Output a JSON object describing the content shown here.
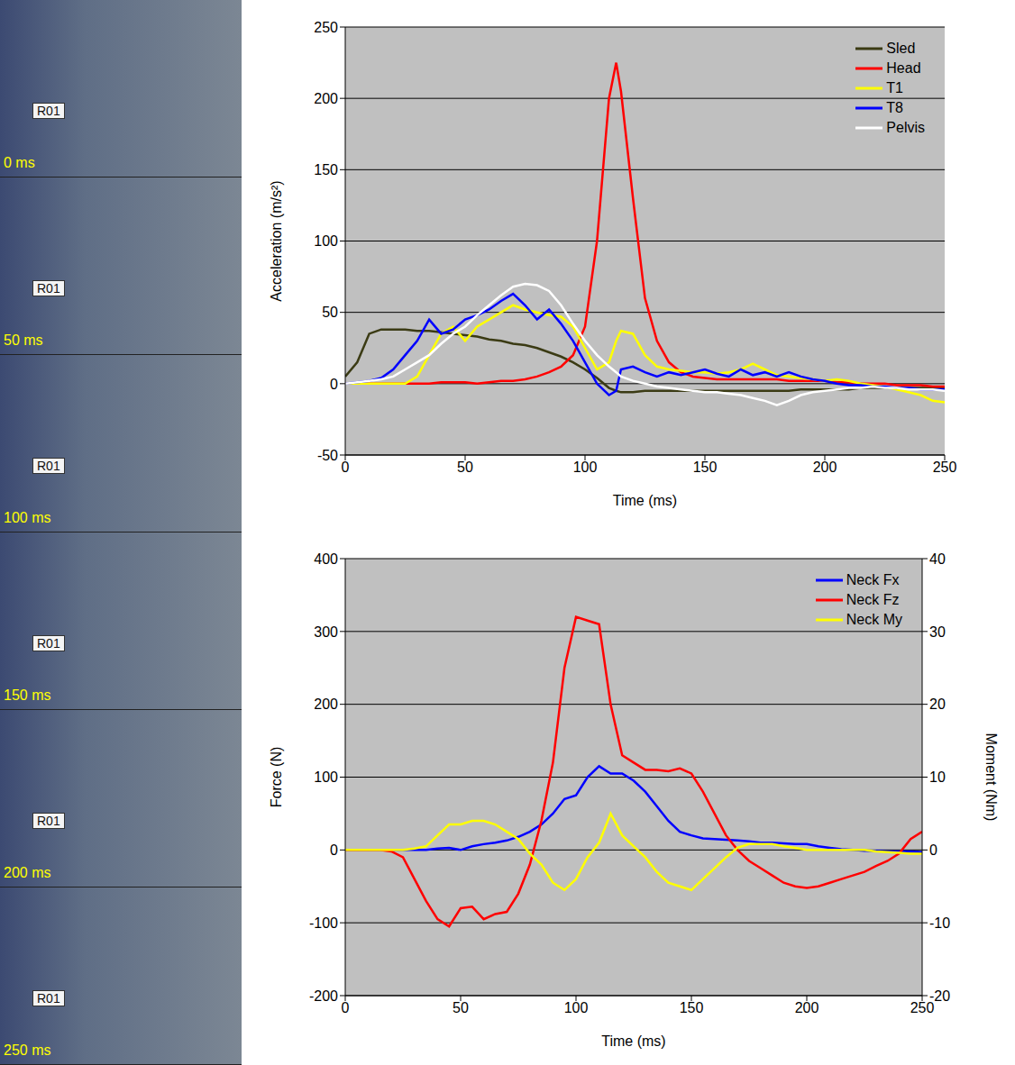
{
  "frames": {
    "labels": [
      "0 ms",
      "50 ms",
      "100 ms",
      "150 ms",
      "200 ms",
      "250 ms"
    ],
    "placard": "R01"
  },
  "chart_data": [
    {
      "type": "line",
      "x_label": "Time (ms)",
      "y_label": "Acceleration (m/s²)",
      "x": [
        0,
        5,
        10,
        15,
        20,
        25,
        30,
        35,
        40,
        45,
        50,
        55,
        60,
        65,
        70,
        75,
        80,
        85,
        90,
        95,
        100,
        105,
        110,
        113,
        115,
        120,
        125,
        130,
        135,
        140,
        145,
        150,
        155,
        160,
        165,
        170,
        175,
        180,
        185,
        190,
        195,
        200,
        205,
        210,
        215,
        220,
        225,
        230,
        235,
        240,
        245,
        250
      ],
      "xlim": [
        0,
        250
      ],
      "xticks": [
        0,
        50,
        100,
        150,
        200,
        250
      ],
      "ylim": [
        -50,
        250
      ],
      "yticks": [
        -50,
        0,
        50,
        100,
        150,
        200,
        250
      ],
      "grid": true,
      "legend": "upper right",
      "series": [
        {
          "name": "Sled",
          "color": "#3b3b14",
          "values": [
            5,
            15,
            35,
            38,
            38,
            38,
            37,
            37,
            36,
            35,
            34,
            33,
            31,
            30,
            28,
            27,
            25,
            22,
            19,
            15,
            10,
            4,
            -3,
            -5,
            -6,
            -6,
            -5,
            -5,
            -5,
            -5,
            -5,
            -5,
            -5,
            -5,
            -5,
            -5,
            -5,
            -5,
            -5,
            -4,
            -4,
            -4,
            -4,
            -4,
            -3,
            -3,
            -3,
            -3,
            -3,
            -3,
            -3,
            -3
          ]
        },
        {
          "name": "Head",
          "color": "#ff0000",
          "values": [
            0,
            0,
            0,
            0,
            0,
            0,
            0,
            0,
            1,
            1,
            1,
            0,
            1,
            2,
            2,
            3,
            5,
            8,
            12,
            20,
            40,
            100,
            200,
            225,
            205,
            130,
            60,
            30,
            15,
            8,
            5,
            4,
            3,
            3,
            3,
            3,
            3,
            3,
            2,
            2,
            2,
            2,
            1,
            1,
            0,
            0,
            0,
            -1,
            -1,
            -1,
            -2,
            -2
          ]
        },
        {
          "name": "T1",
          "color": "#ffff00",
          "values": [
            0,
            0,
            0,
            0,
            0,
            0,
            5,
            20,
            35,
            40,
            30,
            40,
            45,
            50,
            55,
            52,
            50,
            48,
            47,
            40,
            25,
            10,
            15,
            30,
            37,
            35,
            20,
            12,
            10,
            9,
            8,
            8,
            7,
            8,
            10,
            14,
            10,
            6,
            5,
            4,
            3,
            2,
            3,
            2,
            0,
            -1,
            -2,
            -4,
            -6,
            -8,
            -12,
            -13
          ]
        },
        {
          "name": "T8",
          "color": "#0000ff",
          "values": [
            0,
            1,
            2,
            4,
            10,
            20,
            30,
            45,
            35,
            38,
            45,
            48,
            52,
            58,
            63,
            55,
            45,
            52,
            42,
            30,
            15,
            0,
            -8,
            -5,
            10,
            12,
            8,
            5,
            8,
            6,
            8,
            10,
            7,
            5,
            10,
            6,
            8,
            5,
            8,
            5,
            3,
            2,
            0,
            -1,
            -1,
            -2,
            -2,
            -3,
            -3,
            -4,
            -4,
            -4
          ]
        },
        {
          "name": "Pelvis",
          "color": "#ffffff",
          "values": [
            0,
            1,
            2,
            3,
            5,
            10,
            15,
            20,
            28,
            35,
            40,
            48,
            55,
            62,
            68,
            70,
            69,
            65,
            55,
            42,
            30,
            20,
            12,
            8,
            5,
            2,
            0,
            -2,
            -3,
            -4,
            -5,
            -6,
            -6,
            -7,
            -8,
            -10,
            -12,
            -15,
            -12,
            -8,
            -6,
            -5,
            -4,
            -3,
            -3,
            -2,
            -3,
            -3,
            -4,
            -4,
            -4,
            -5
          ]
        }
      ]
    },
    {
      "type": "line",
      "x_label": "Time (ms)",
      "y_label": "Force (N)",
      "y2_label": "Moment (Nm)",
      "x": [
        0,
        5,
        10,
        15,
        20,
        25,
        30,
        35,
        40,
        45,
        50,
        55,
        60,
        65,
        70,
        75,
        80,
        85,
        90,
        95,
        100,
        105,
        110,
        115,
        120,
        125,
        130,
        135,
        140,
        145,
        150,
        155,
        160,
        165,
        170,
        175,
        180,
        185,
        190,
        195,
        200,
        205,
        210,
        215,
        220,
        225,
        230,
        235,
        240,
        245,
        250
      ],
      "xlim": [
        0,
        250
      ],
      "xticks": [
        0,
        50,
        100,
        150,
        200,
        250
      ],
      "ylim": [
        -200,
        400
      ],
      "yticks": [
        -200,
        -100,
        0,
        100,
        200,
        300,
        400
      ],
      "y2lim": [
        -20,
        40
      ],
      "y2ticks": [
        -20,
        -10,
        0,
        10,
        20,
        30,
        40
      ],
      "grid": true,
      "legend": "upper right",
      "series": [
        {
          "name": "Neck Fx",
          "color": "#0000ff",
          "values": [
            0,
            0,
            0,
            0,
            0,
            0,
            0,
            0,
            2,
            3,
            0,
            5,
            8,
            10,
            13,
            18,
            25,
            35,
            50,
            70,
            75,
            100,
            115,
            105,
            105,
            95,
            80,
            60,
            40,
            25,
            20,
            16,
            15,
            14,
            13,
            12,
            10,
            10,
            9,
            8,
            8,
            5,
            3,
            1,
            0,
            -1,
            -1,
            -2,
            -2,
            -2,
            -3
          ]
        },
        {
          "name": "Neck Fz",
          "color": "#ff0000",
          "values": [
            0,
            0,
            0,
            0,
            -2,
            -10,
            -40,
            -70,
            -95,
            -105,
            -80,
            -78,
            -95,
            -88,
            -85,
            -60,
            -20,
            40,
            120,
            250,
            320,
            315,
            310,
            200,
            130,
            120,
            110,
            110,
            108,
            112,
            105,
            80,
            50,
            20,
            0,
            -15,
            -25,
            -35,
            -45,
            -50,
            -52,
            -50,
            -45,
            -40,
            -35,
            -30,
            -22,
            -15,
            -5,
            15,
            25
          ]
        },
        {
          "name": "Neck My",
          "color": "#ffff00",
          "axis": "y2",
          "values": [
            0,
            0,
            0,
            0,
            0,
            0,
            0.2,
            0.5,
            2,
            3.5,
            3.5,
            4,
            4,
            3.5,
            2.5,
            1.5,
            -0.5,
            -2,
            -4.5,
            -5.5,
            -4,
            -1,
            1,
            5,
            2,
            0.5,
            -1,
            -3,
            -4.5,
            -5,
            -5.5,
            -4,
            -2.5,
            -1,
            0.3,
            0.8,
            0.8,
            0.8,
            0.5,
            0.3,
            0,
            0,
            0,
            0,
            0,
            0,
            -0.2,
            -0.3,
            -0.4,
            -0.5,
            -0.5
          ]
        }
      ]
    }
  ]
}
